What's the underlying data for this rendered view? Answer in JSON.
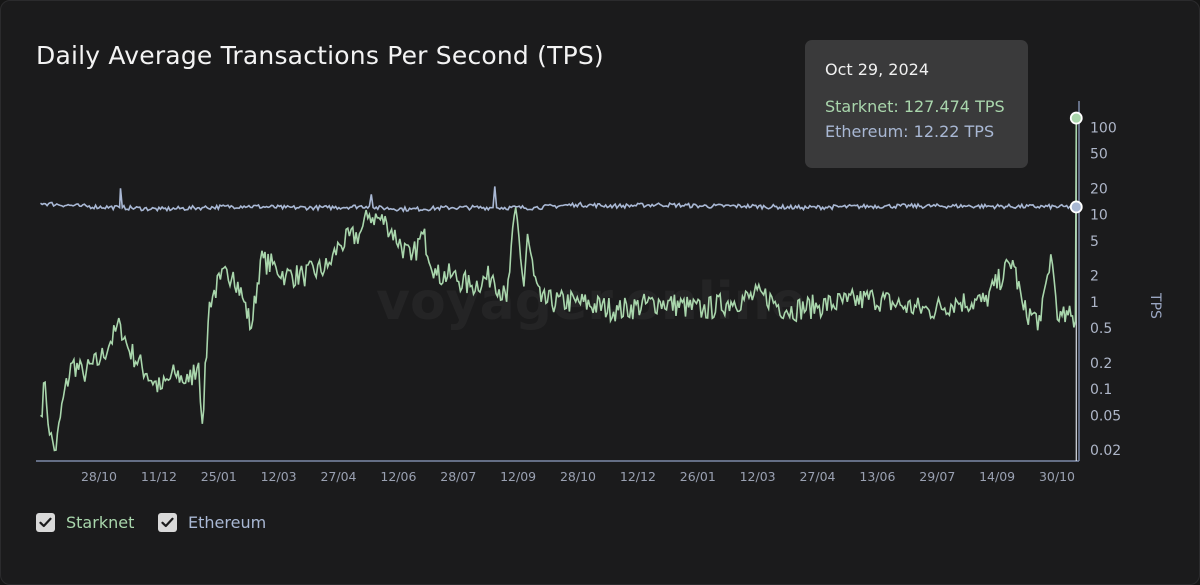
{
  "chart_data": {
    "type": "line",
    "title": "Daily Average Transactions Per Second (TPS)",
    "ylabel": "TPS",
    "xlabel": "",
    "yscale": "log",
    "ylim": [
      0.015,
      200
    ],
    "x_ticks": [
      "28/10",
      "11/12",
      "25/01",
      "12/03",
      "27/04",
      "12/06",
      "28/07",
      "12/09",
      "28/10",
      "12/12",
      "26/01",
      "12/03",
      "27/04",
      "13/06",
      "29/07",
      "14/09",
      "30/10"
    ],
    "y_ticks": [
      0.02,
      0.05,
      0.1,
      0.2,
      0.5,
      1,
      2,
      5,
      10,
      20,
      50,
      100
    ],
    "x_range": [
      "2021-09-10",
      "2024-11-01"
    ],
    "series": [
      {
        "name": "Starknet",
        "color": "#a9d6ac",
        "points": [
          [
            "2021-09-15",
            0.05
          ],
          [
            "2021-09-20",
            0.12
          ],
          [
            "2021-09-25",
            0.03
          ],
          [
            "2021-10-02",
            0.02
          ],
          [
            "2021-10-10",
            0.08
          ],
          [
            "2021-10-20",
            0.2
          ],
          [
            "2021-11-01",
            0.15
          ],
          [
            "2021-11-20",
            0.22
          ],
          [
            "2021-12-01",
            0.35
          ],
          [
            "2021-12-12",
            0.55
          ],
          [
            "2021-12-20",
            0.3
          ],
          [
            "2022-01-10",
            0.15
          ],
          [
            "2022-01-25",
            0.1
          ],
          [
            "2022-02-10",
            0.15
          ],
          [
            "2022-02-25",
            0.12
          ],
          [
            "2022-03-08",
            0.2
          ],
          [
            "2022-03-12",
            0.04
          ],
          [
            "2022-03-20",
            1.0
          ],
          [
            "2022-04-01",
            1.8
          ],
          [
            "2022-04-15",
            2.2
          ],
          [
            "2022-04-27",
            1.0
          ],
          [
            "2022-05-05",
            0.5
          ],
          [
            "2022-05-15",
            3.0
          ],
          [
            "2022-06-01",
            2.5
          ],
          [
            "2022-06-12",
            2.0
          ],
          [
            "2022-07-01",
            2.0
          ],
          [
            "2022-07-28",
            2.5
          ],
          [
            "2022-08-10",
            4.5
          ],
          [
            "2022-09-01",
            6.0
          ],
          [
            "2022-09-12",
            10.0
          ],
          [
            "2022-10-01",
            8.0
          ],
          [
            "2022-10-28",
            3.0
          ],
          [
            "2022-11-10",
            6.0
          ],
          [
            "2022-11-25",
            2.0
          ],
          [
            "2022-12-12",
            2.0
          ],
          [
            "2023-01-01",
            1.5
          ],
          [
            "2023-01-26",
            2.0
          ],
          [
            "2023-02-10",
            1.0
          ],
          [
            "2023-02-20",
            12.0
          ],
          [
            "2023-03-01",
            1.5
          ],
          [
            "2023-03-05",
            6.0
          ],
          [
            "2023-03-12",
            2.0
          ],
          [
            "2023-03-20",
            1.0
          ],
          [
            "2023-04-27",
            1.0
          ],
          [
            "2023-06-13",
            0.8
          ],
          [
            "2023-07-29",
            1.0
          ],
          [
            "2023-09-14",
            0.8
          ],
          [
            "2023-10-15",
            1.0
          ],
          [
            "2023-11-20",
            1.2
          ],
          [
            "2023-12-15",
            0.8
          ],
          [
            "2024-01-20",
            0.9
          ],
          [
            "2024-02-20",
            1.0
          ],
          [
            "2024-03-20",
            1.1
          ],
          [
            "2024-04-20",
            0.9
          ],
          [
            "2024-05-20",
            0.8
          ],
          [
            "2024-06-20",
            1.0
          ],
          [
            "2024-07-20",
            1.0
          ],
          [
            "2024-08-20",
            3.0
          ],
          [
            "2024-09-01",
            0.8
          ],
          [
            "2024-09-20",
            0.6
          ],
          [
            "2024-10-01",
            3.5
          ],
          [
            "2024-10-10",
            0.6
          ],
          [
            "2024-10-20",
            0.7
          ],
          [
            "2024-10-28",
            0.6
          ],
          [
            "2024-10-29",
            127.474
          ]
        ]
      },
      {
        "name": "Ethereum",
        "color": "#a9b8d4",
        "points": [
          [
            "2021-09-15",
            13.5
          ],
          [
            "2021-10-28",
            12.5
          ],
          [
            "2021-12-11",
            12.0
          ],
          [
            "2021-12-12",
            20.0
          ],
          [
            "2021-12-14",
            12.0
          ],
          [
            "2022-01-25",
            11.5
          ],
          [
            "2022-03-12",
            12.0
          ],
          [
            "2022-04-27",
            12.5
          ],
          [
            "2022-06-12",
            12.0
          ],
          [
            "2022-07-28",
            12.0
          ],
          [
            "2022-09-12",
            12.5
          ],
          [
            "2022-09-14",
            17.0
          ],
          [
            "2022-09-16",
            12.0
          ],
          [
            "2022-10-28",
            11.5
          ],
          [
            "2022-12-12",
            12.0
          ],
          [
            "2023-01-26",
            12.0
          ],
          [
            "2023-01-28",
            21.0
          ],
          [
            "2023-01-30",
            12.0
          ],
          [
            "2023-03-12",
            12.0
          ],
          [
            "2023-04-27",
            13.0
          ],
          [
            "2023-06-13",
            12.5
          ],
          [
            "2023-07-29",
            13.0
          ],
          [
            "2023-09-14",
            12.5
          ],
          [
            "2023-10-30",
            12.5
          ],
          [
            "2024-01-01",
            12.0
          ],
          [
            "2024-04-01",
            12.5
          ],
          [
            "2024-07-01",
            12.5
          ],
          [
            "2024-10-29",
            12.22
          ]
        ]
      }
    ],
    "tooltip": {
      "date": "Oct 29, 2024",
      "starknet": "Starknet: 127.474 TPS",
      "ethereum": "Ethereum: 12.22 TPS"
    },
    "watermark": "voyager.online",
    "legend": [
      {
        "label": "Starknet",
        "checked": true,
        "color": "#a9d6ac"
      },
      {
        "label": "Ethereum",
        "checked": true,
        "color": "#a9b8d4"
      }
    ]
  }
}
